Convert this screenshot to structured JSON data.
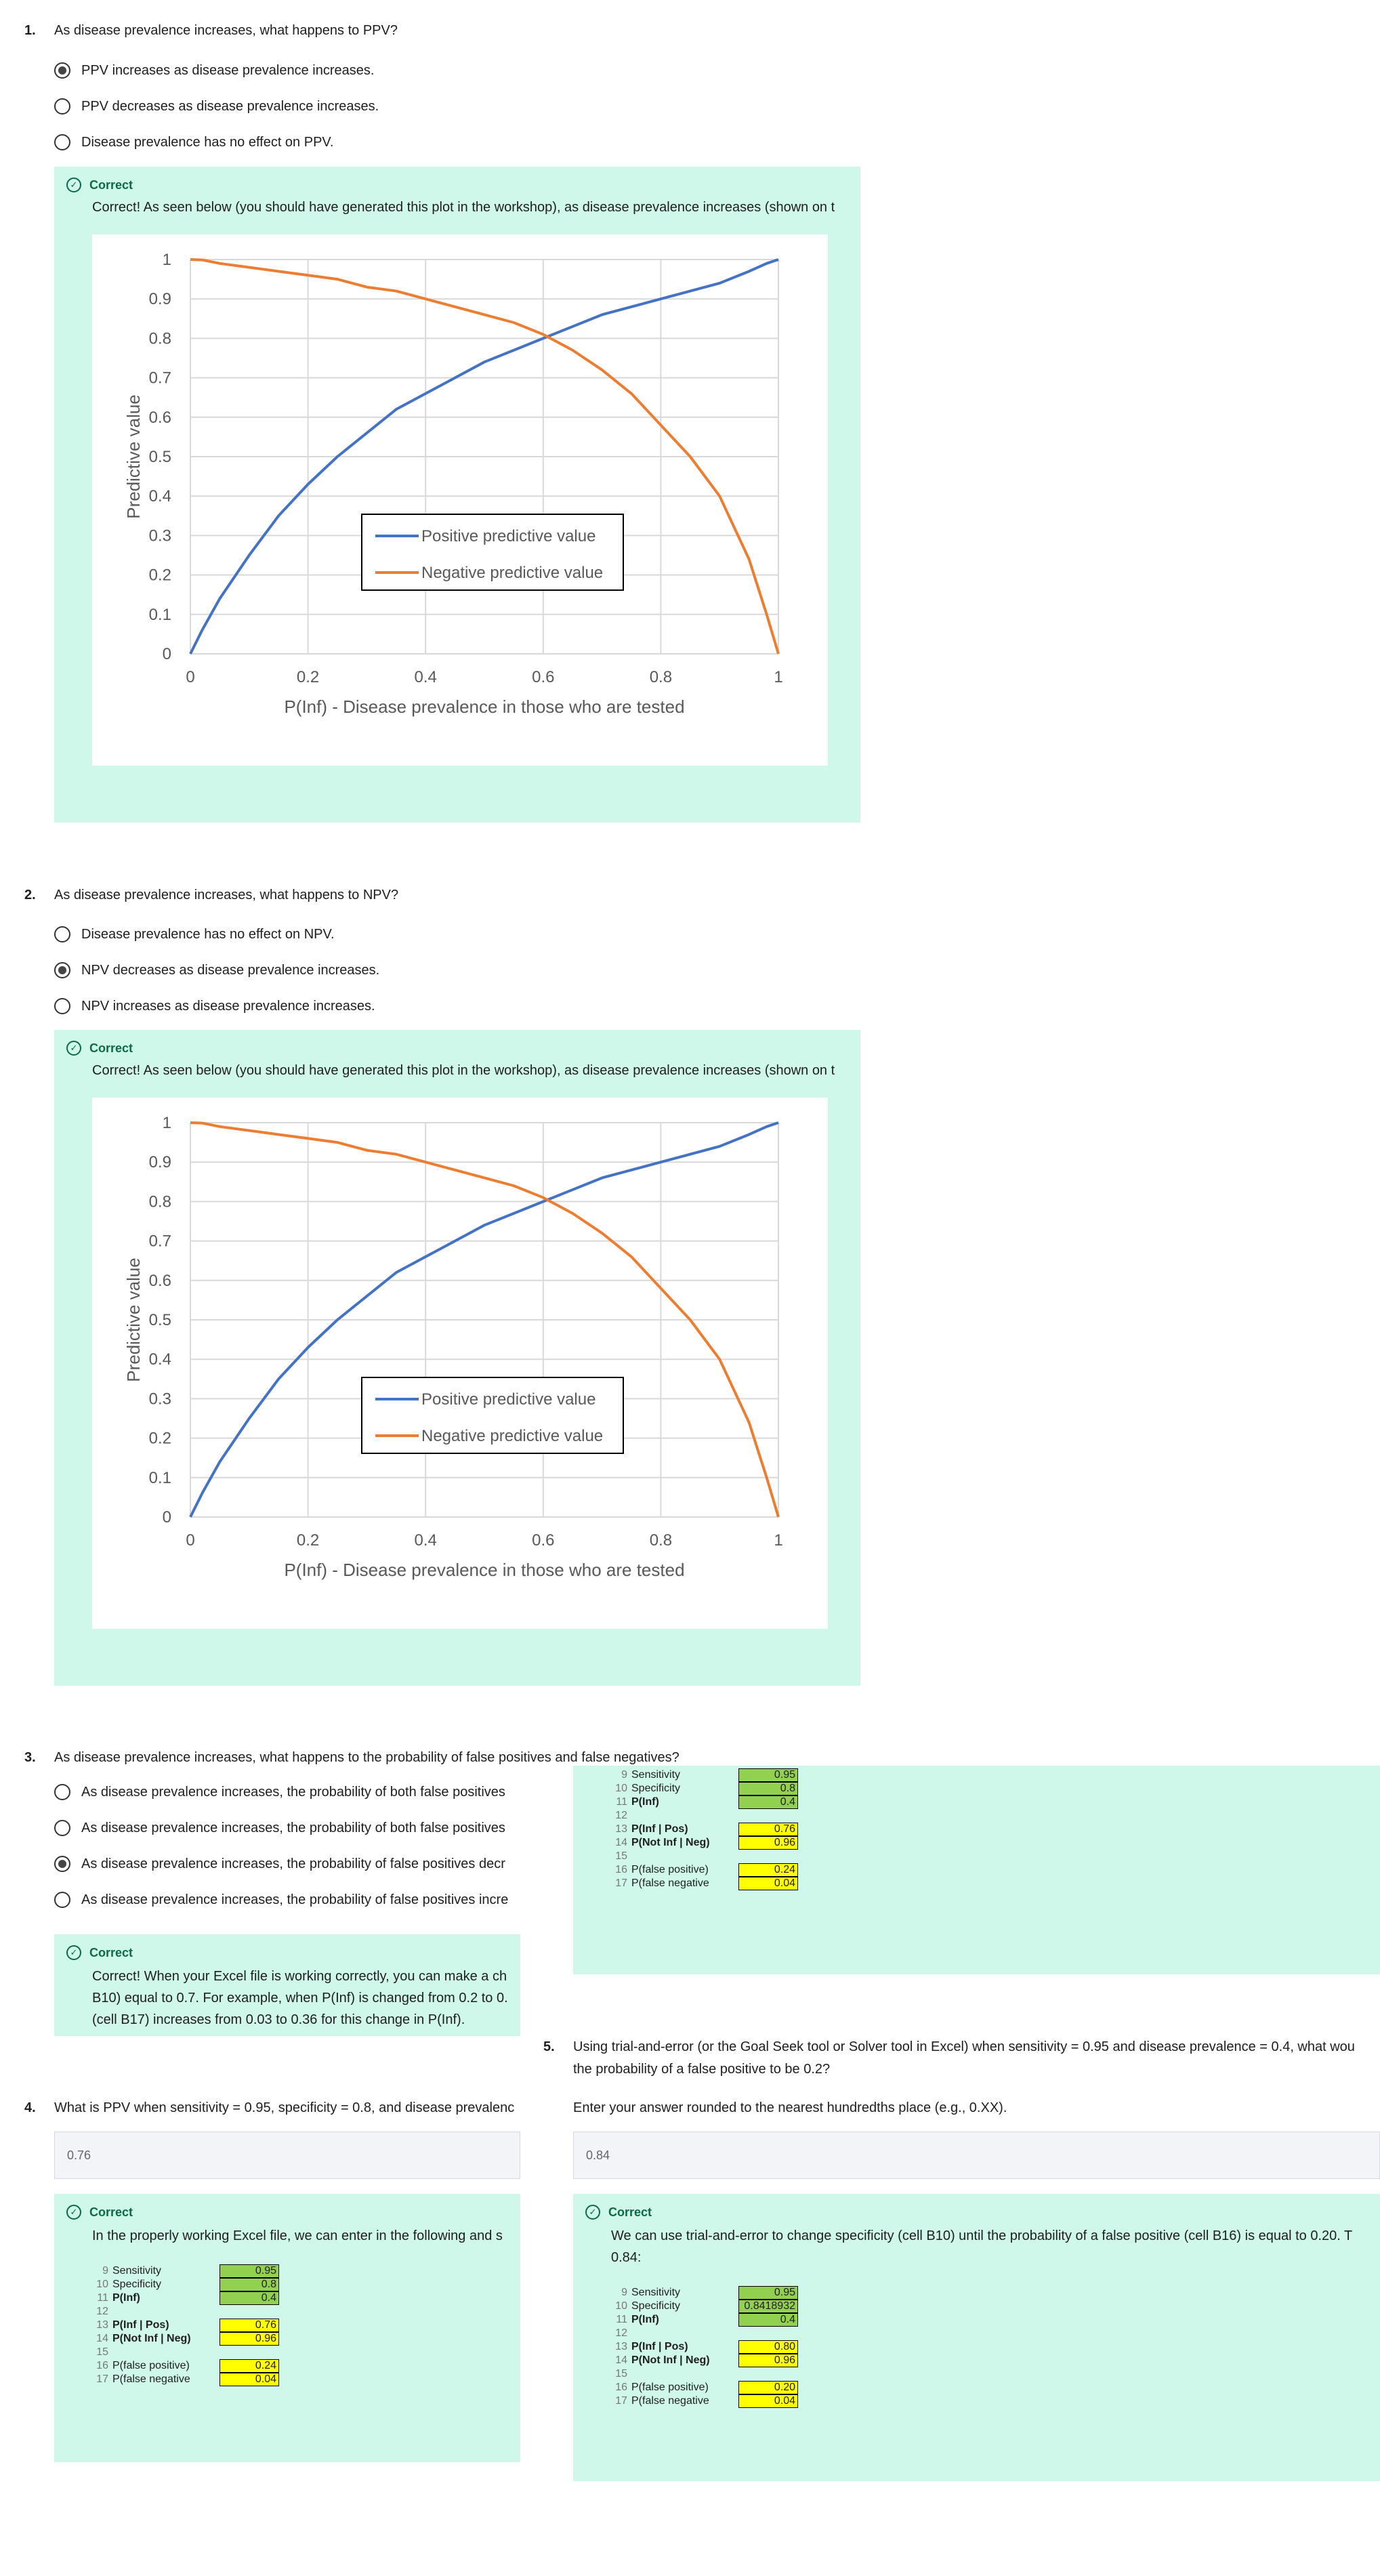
{
  "q1": {
    "number": "1.",
    "text": "As disease prevalence increases, what happens to PPV?",
    "options": [
      {
        "label": "PPV increases as disease prevalence increases.",
        "selected": true
      },
      {
        "label": "PPV decreases as disease prevalence increases.",
        "selected": false
      },
      {
        "label": "Disease prevalence has no effect on PPV.",
        "selected": false
      }
    ],
    "feedback": {
      "status": "Correct",
      "text": "Correct!  As seen below (you should have generated this plot in the workshop), as disease prevalence increases (shown on t"
    }
  },
  "q2": {
    "number": "2.",
    "text": "As disease prevalence increases, what happens to NPV?",
    "options": [
      {
        "label": "Disease prevalence has no effect on NPV.",
        "selected": false
      },
      {
        "label": "NPV decreases as disease prevalence increases.",
        "selected": true
      },
      {
        "label": "NPV increases as disease prevalence increases.",
        "selected": false
      }
    ],
    "feedback": {
      "status": "Correct",
      "text": "Correct!  As seen below (you should have generated this plot in the workshop), as disease prevalence increases (shown on t"
    }
  },
  "q3": {
    "number": "3.",
    "text": "As disease prevalence increases, what happens to the probability of false positives and false negatives?",
    "options": [
      {
        "label": "As disease prevalence increases, the probability of both false positives",
        "selected": false
      },
      {
        "label": "As disease prevalence increases, the probability of both false positives",
        "selected": false
      },
      {
        "label": "As disease prevalence increases, the probability of false positives decr",
        "selected": true
      },
      {
        "label": "As disease prevalence increases, the probability of false positives incre",
        "selected": false
      }
    ],
    "feedback": {
      "status": "Correct",
      "lines": [
        "Correct!  When your Excel file is working correctly, you can make a ch",
        "B10) equal to 0.7.  For example, when P(Inf) is changed from 0.2 to 0.",
        "(cell B17) increases from 0.03 to 0.36 for this change in P(Inf)."
      ]
    }
  },
  "q4": {
    "number": "4.",
    "text": "What is PPV when sensitivity = 0.95, specificity = 0.8, and disease prevalenc",
    "answer": "0.76",
    "feedback": {
      "status": "Correct",
      "text": "In the properly working Excel file, we can enter in the following and s"
    }
  },
  "q5": {
    "number": "5.",
    "lines": [
      "Using trial-and-error (or the Goal Seek tool or Solver tool in Excel) when sensitivity = 0.95 and disease prevalence = 0.4, what wou",
      "the probability of a false positive to be 0.2?"
    ],
    "instruction": "Enter your answer rounded to the nearest hundredths place (e.g., 0.XX).",
    "answer": "0.84",
    "feedback": {
      "status": "Correct",
      "lines": [
        "We can use trial-and-error to change specificity (cell B10) until the probability of a false positive (cell B16) is equal to 0.20.  T",
        "0.84:"
      ]
    }
  },
  "sheet_a": {
    "rows": [
      {
        "n": "9",
        "label": "Sensitivity",
        "bold": false
      },
      {
        "n": "10",
        "label": "Specificity",
        "bold": false
      },
      {
        "n": "11",
        "label": "P(Inf)",
        "bold": true
      },
      {
        "n": "12",
        "label": "",
        "bold": false
      },
      {
        "n": "13",
        "label": "P(Inf | Pos)",
        "bold": true
      },
      {
        "n": "14",
        "label": "P(Not Inf | Neg)",
        "bold": true
      },
      {
        "n": "15",
        "label": "",
        "bold": false
      },
      {
        "n": "16",
        "label": "P(false positive)",
        "bold": false
      },
      {
        "n": "17",
        "label": "P(false negative",
        "bold": false
      }
    ],
    "values": [
      "0.95",
      "0.8",
      "0.4",
      "0.76",
      "0.96",
      "0.24",
      "0.04"
    ]
  },
  "sheet_b": {
    "rows": [
      {
        "n": "9",
        "label": "Sensitivity",
        "bold": false
      },
      {
        "n": "10",
        "label": "Specificity",
        "bold": false
      },
      {
        "n": "11",
        "label": "P(Inf)",
        "bold": true
      },
      {
        "n": "12",
        "label": "",
        "bold": false
      },
      {
        "n": "13",
        "label": "P(Inf | Pos)",
        "bold": true
      },
      {
        "n": "14",
        "label": "P(Not Inf | Neg)",
        "bold": true
      },
      {
        "n": "15",
        "label": "",
        "bold": false
      },
      {
        "n": "16",
        "label": "P(false positive)",
        "bold": false
      },
      {
        "n": "17",
        "label": "P(false negative",
        "bold": false
      }
    ],
    "values": [
      "0.95",
      "0.8418932",
      "0.4",
      "0.80",
      "0.96",
      "0.20",
      "0.04"
    ]
  },
  "chart_data": [
    {
      "type": "line",
      "title": "",
      "xlabel": "P(Inf) - Disease prevalence in those who are tested",
      "ylabel": "Predictive value",
      "xlim": [
        0,
        1
      ],
      "ylim": [
        0,
        1
      ],
      "x_ticks": [
        "0",
        "0.2",
        "0.4",
        "0.6",
        "0.8",
        "1"
      ],
      "y_ticks": [
        "0",
        "0.1",
        "0.2",
        "0.3",
        "0.4",
        "0.5",
        "0.6",
        "0.7",
        "0.8",
        "0.9",
        "1"
      ],
      "grid": true,
      "legend": "center",
      "x": [
        0,
        0.02,
        0.05,
        0.1,
        0.15,
        0.2,
        0.25,
        0.3,
        0.35,
        0.4,
        0.45,
        0.5,
        0.55,
        0.6,
        0.65,
        0.7,
        0.75,
        0.8,
        0.85,
        0.9,
        0.95,
        0.98,
        1
      ],
      "series": [
        {
          "name": "Positive predictive value",
          "color": "#4472c4",
          "values": [
            0,
            0.06,
            0.14,
            0.25,
            0.35,
            0.43,
            0.5,
            0.56,
            0.62,
            0.66,
            0.7,
            0.74,
            0.77,
            0.8,
            0.83,
            0.86,
            0.88,
            0.9,
            0.92,
            0.94,
            0.97,
            0.99,
            1
          ]
        },
        {
          "name": "Negative predictive value",
          "color": "#ed7d31",
          "values": [
            1,
            0.999,
            0.99,
            0.98,
            0.97,
            0.96,
            0.95,
            0.93,
            0.92,
            0.9,
            0.88,
            0.86,
            0.84,
            0.81,
            0.77,
            0.72,
            0.66,
            0.58,
            0.5,
            0.4,
            0.24,
            0.1,
            0
          ]
        }
      ]
    },
    {
      "type": "line",
      "title": "",
      "xlabel": "P(Inf) - Disease prevalence in those who are tested",
      "ylabel": "Predictive value",
      "xlim": [
        0,
        1
      ],
      "ylim": [
        0,
        1
      ],
      "x_ticks": [
        "0",
        "0.2",
        "0.4",
        "0.6",
        "0.8",
        "1"
      ],
      "y_ticks": [
        "0",
        "0.1",
        "0.2",
        "0.3",
        "0.4",
        "0.5",
        "0.6",
        "0.7",
        "0.8",
        "0.9",
        "1"
      ],
      "grid": true,
      "legend": "center",
      "x": [
        0,
        0.02,
        0.05,
        0.1,
        0.15,
        0.2,
        0.25,
        0.3,
        0.35,
        0.4,
        0.45,
        0.5,
        0.55,
        0.6,
        0.65,
        0.7,
        0.75,
        0.8,
        0.85,
        0.9,
        0.95,
        0.98,
        1
      ],
      "series": [
        {
          "name": "Positive predictive value",
          "color": "#4472c4",
          "values": [
            0,
            0.06,
            0.14,
            0.25,
            0.35,
            0.43,
            0.5,
            0.56,
            0.62,
            0.66,
            0.7,
            0.74,
            0.77,
            0.8,
            0.83,
            0.86,
            0.88,
            0.9,
            0.92,
            0.94,
            0.97,
            0.99,
            1
          ]
        },
        {
          "name": "Negative predictive value",
          "color": "#ed7d31",
          "values": [
            1,
            0.999,
            0.99,
            0.98,
            0.97,
            0.96,
            0.95,
            0.93,
            0.92,
            0.9,
            0.88,
            0.86,
            0.84,
            0.81,
            0.77,
            0.72,
            0.66,
            0.58,
            0.5,
            0.4,
            0.24,
            0.1,
            0
          ]
        }
      ]
    }
  ]
}
